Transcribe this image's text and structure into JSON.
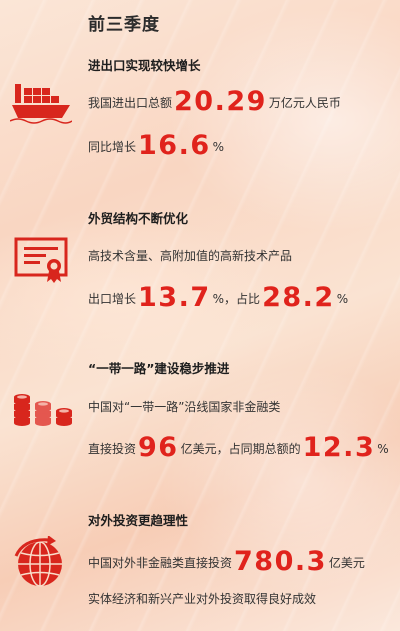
{
  "page": {
    "title": "前三季度"
  },
  "colors": {
    "accent": "#e0231c",
    "background": "#f9d6c2"
  },
  "sections": [
    {
      "title": "进出口实现较快增长",
      "icon": "cargo-ship-icon",
      "line1": {
        "prefix": "我国进出口总额",
        "value": "20.29",
        "suffix": "万亿元人民币"
      },
      "line2": {
        "prefix": "同比增长",
        "value": "16.6",
        "unit": "%"
      }
    },
    {
      "title": "外贸结构不断优化",
      "icon": "certificate-icon",
      "line1": {
        "text": "高技术含量、高附加值的高新技术产品"
      },
      "line2": {
        "prefix": "出口增长",
        "value1": "13.7",
        "unit1": "%",
        "mid": "，占比",
        "value2": "28.2",
        "unit2": "%"
      }
    },
    {
      "title": "“一带一路”建设稳步推进",
      "icon": "coin-stacks-icon",
      "line1": {
        "text": "中国对“一带一路”沿线国家非金融类"
      },
      "line2": {
        "prefix": "直接投资",
        "value1": "96",
        "mid": "亿美元，占同期总额的",
        "value2": "12.3",
        "unit2": "%"
      }
    },
    {
      "title": "对外投资更趋理性",
      "icon": "globe-arrow-icon",
      "line1": {
        "prefix": "中国对外非金融类直接投资",
        "value": "780.3",
        "suffix": "亿美元"
      },
      "line2": {
        "text": "实体经济和新兴产业对外投资取得良好成效"
      }
    }
  ]
}
